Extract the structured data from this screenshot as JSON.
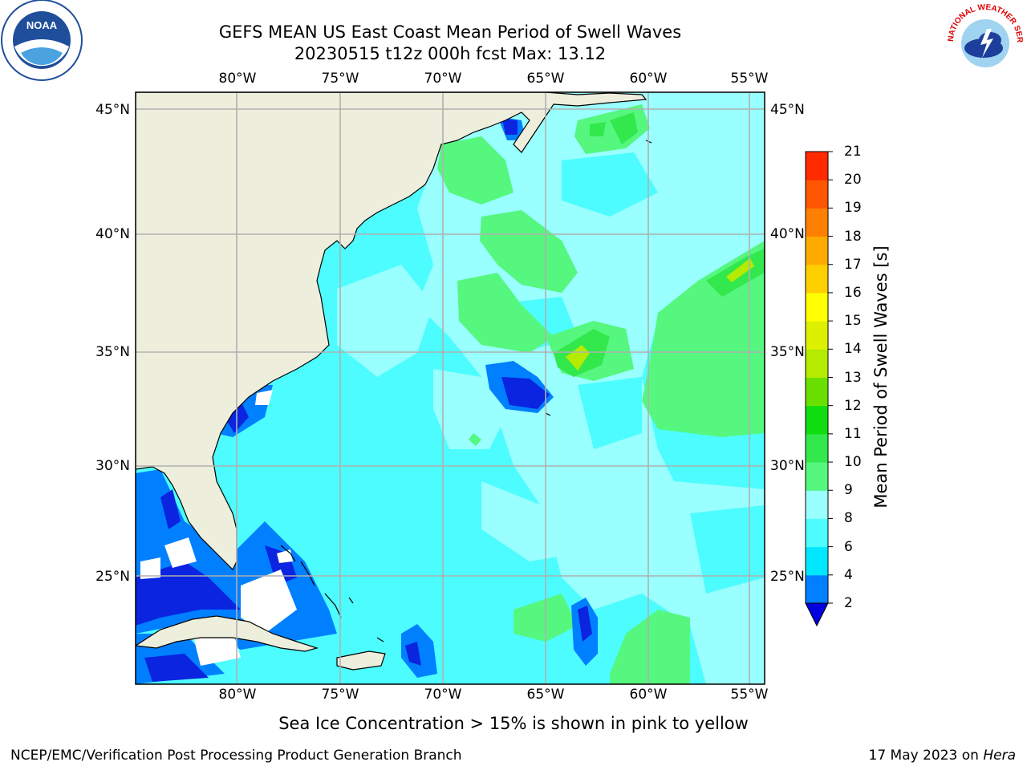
{
  "title": {
    "line1": "GEFS MEAN US East Coast Mean Period of Swell Waves",
    "line2": "20230515 t12z 000h fcst   Max: 13.12"
  },
  "map": {
    "lon_labels": [
      "80°W",
      "75°W",
      "70°W",
      "65°W",
      "60°W",
      "55°W"
    ],
    "lon_values": [
      -80,
      -75,
      -70,
      -65,
      -60,
      -55
    ],
    "lat_labels": [
      "45°N",
      "40°N",
      "35°N",
      "30°N",
      "25°N"
    ],
    "lat_values": [
      45,
      40,
      35,
      30,
      25
    ],
    "extent": {
      "lon_min": -85,
      "lon_max": -54.2,
      "lat_min": 20.5,
      "lat_max": 46
    },
    "colors": {
      "land": "#eeeedd",
      "grid": "#b0b0b0",
      "coast": "#000000"
    }
  },
  "colorbar": {
    "label": "Mean Period of Swell Waves [s]",
    "ticks": [
      "2",
      "4",
      "6",
      "8",
      "9",
      "10",
      "11",
      "12",
      "13",
      "14",
      "15",
      "16",
      "17",
      "18",
      "19",
      "20",
      "21"
    ],
    "colors": [
      "#0a24e0",
      "#0080ff",
      "#00e8ff",
      "#4cfcff",
      "#99ffff",
      "#55f77f",
      "#33e84c",
      "#10dd10",
      "#6ae000",
      "#b4eb00",
      "#ddf000",
      "#ffff00",
      "#ffd000",
      "#ffaa00",
      "#ff8000",
      "#ff5500",
      "#ff2a00",
      "#ff0000"
    ],
    "under_color": "#0000e0"
  },
  "logos": {
    "noaa": "NOAA",
    "nws_arc": "NATIONAL WEATHER SERVICE"
  },
  "note": "Sea Ice Concentration > 15% is shown in pink to yellow",
  "footer": {
    "left": "NCEP/EMC/Verification Post Processing Product Generation Branch",
    "date": "17 May 2023 on ",
    "machine": "Hera"
  }
}
